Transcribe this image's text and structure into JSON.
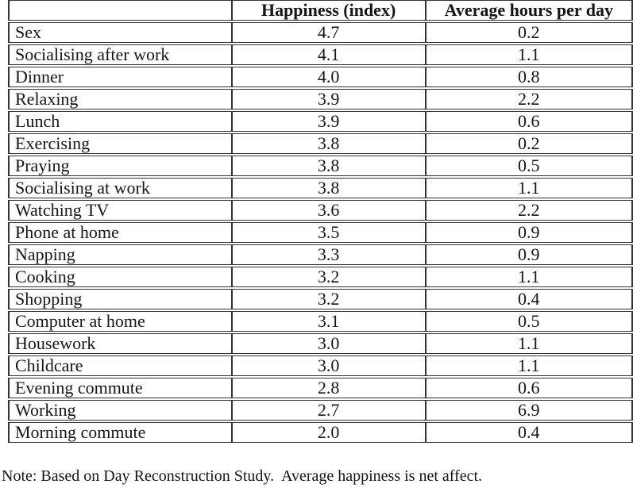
{
  "page": {
    "background": "#ffffff",
    "text_color": "#161616",
    "rule_color": "#333333"
  },
  "table": {
    "columns": [
      {
        "key": "activity",
        "label": ""
      },
      {
        "key": "happiness",
        "label": "Happiness (index)"
      },
      {
        "key": "hours",
        "label": "Average hours per day"
      }
    ],
    "rows": [
      {
        "activity": "Sex",
        "happiness": "4.7",
        "hours": "0.2"
      },
      {
        "activity": "Socialising after work",
        "happiness": "4.1",
        "hours": "1.1"
      },
      {
        "activity": "Dinner",
        "happiness": "4.0",
        "hours": "0.8"
      },
      {
        "activity": "Relaxing",
        "happiness": "3.9",
        "hours": "2.2"
      },
      {
        "activity": "Lunch",
        "happiness": "3.9",
        "hours": "0.6"
      },
      {
        "activity": "Exercising",
        "happiness": "3.8",
        "hours": "0.2"
      },
      {
        "activity": "Praying",
        "happiness": "3.8",
        "hours": "0.5"
      },
      {
        "activity": "Socialising at work",
        "happiness": "3.8",
        "hours": "1.1"
      },
      {
        "activity": "Watching TV",
        "happiness": "3.6",
        "hours": "2.2"
      },
      {
        "activity": "Phone at home",
        "happiness": "3.5",
        "hours": "0.9"
      },
      {
        "activity": "Napping",
        "happiness": "3.3",
        "hours": "0.9"
      },
      {
        "activity": "Cooking",
        "happiness": "3.2",
        "hours": "1.1"
      },
      {
        "activity": "Shopping",
        "happiness": "3.2",
        "hours": "0.4"
      },
      {
        "activity": "Computer at home",
        "happiness": "3.1",
        "hours": "0.5"
      },
      {
        "activity": "Housework",
        "happiness": "3.0",
        "hours": "1.1"
      },
      {
        "activity": "Childcare",
        "happiness": "3.0",
        "hours": "1.1"
      },
      {
        "activity": "Evening commute",
        "happiness": "2.8",
        "hours": "0.6"
      },
      {
        "activity": "Working",
        "happiness": "2.7",
        "hours": "6.9"
      },
      {
        "activity": "Morning commute",
        "happiness": "2.0",
        "hours": "0.4"
      }
    ]
  },
  "note": "Note: Based on Day Reconstruction Study.  Average happiness is net affect."
}
